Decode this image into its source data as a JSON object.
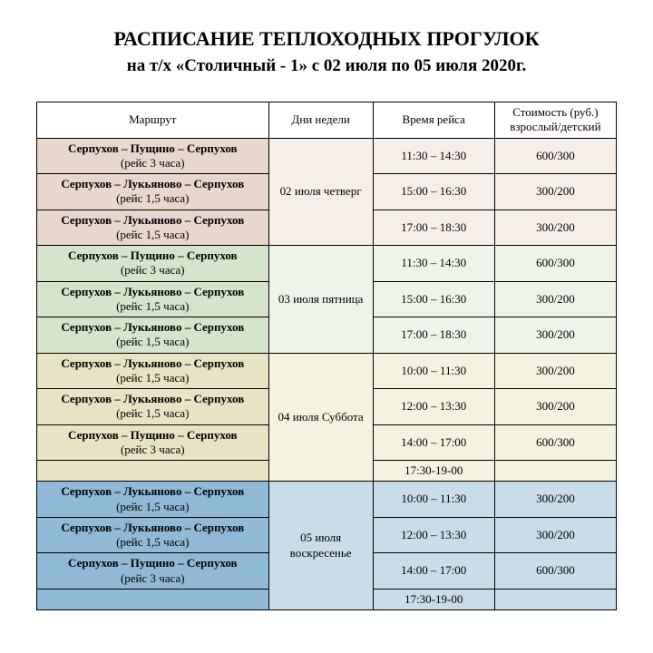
{
  "header": {
    "line1": "РАСПИСАНИЕ ТЕПЛОХОДНЫХ ПРОГУЛОК",
    "line2": "на т/х «Столичный - 1» с 02 июля по 05 июля 2020г."
  },
  "table": {
    "columns": {
      "route": "Маршрут",
      "day": "Дни недели",
      "time": "Время рейса",
      "price": "Стоимость (руб.) взрослый/детский"
    },
    "groups": [
      {
        "day": "02 июля четверг",
        "bg_route": "#e9d6cd",
        "bg_cells": "#f6efe9",
        "rows": [
          {
            "route_name": "Серпухов – Пущино – Серпухов",
            "route_dur": "(рейс 3 часа)",
            "time": "11:30 – 14:30",
            "price": "600/300"
          },
          {
            "route_name": "Серпухов – Лукьяново – Серпухов",
            "route_dur": "(рейс 1,5 часа)",
            "time": "15:00 – 16:30",
            "price": "300/200"
          },
          {
            "route_name": "Серпухов – Лукьяново – Серпухов",
            "route_dur": "(рейс 1,5 часа)",
            "time": "17:00 – 18:30",
            "price": "300/200"
          }
        ]
      },
      {
        "day": "03 июля пятница",
        "bg_route": "#d5e4cb",
        "bg_cells": "#eef4e9",
        "rows": [
          {
            "route_name": "Серпухов – Пущино – Серпухов",
            "route_dur": "(рейс 3 часа)",
            "time": "11:30 – 14:30",
            "price": "600/300"
          },
          {
            "route_name": "Серпухов – Лукьяново – Серпухов",
            "route_dur": "(рейс 1,5 часа)",
            "time": "15:00 – 16:30",
            "price": "300/200"
          },
          {
            "route_name": "Серпухов – Лукьяново – Серпухов",
            "route_dur": "(рейс 1,5 часа)",
            "time": "17:00 – 18:30",
            "price": "300/200"
          }
        ]
      },
      {
        "day": "04 июля Суббота",
        "bg_route": "#e8e3c3",
        "bg_cells": "#f5f2e0",
        "rows": [
          {
            "route_name": "Серпухов – Лукьяново – Серпухов",
            "route_dur": "(рейс 1,5 часа)",
            "time": "10:00 – 11:30",
            "price": "300/200"
          },
          {
            "route_name": "Серпухов – Лукьяново – Серпухов",
            "route_dur": "(рейс 1,5 часа)",
            "time": "12:00 – 13:30",
            "price": "300/200"
          },
          {
            "route_name": "Серпухов – Пущино – Серпухов",
            "route_dur": "(рейс 3 часа)",
            "time": "14:00 – 17:00",
            "price": "600/300"
          },
          {
            "route_name": "",
            "route_dur": "",
            "time": "17:30-19-00",
            "price": ""
          }
        ]
      },
      {
        "day": "05 июля воскресенье",
        "bg_route": "#8fb9d6",
        "bg_cells": "#c9dce9",
        "rows": [
          {
            "route_name": "Серпухов – Лукьяново – Серпухов",
            "route_dur": "(рейс 1,5 часа)",
            "time": "10:00 – 11:30",
            "price": "300/200"
          },
          {
            "route_name": "Серпухов – Лукьяново – Серпухов",
            "route_dur": "(рейс 1,5 часа)",
            "time": "12:00 – 13:30",
            "price": "300/200"
          },
          {
            "route_name": "Серпухов – Пущино – Серпухов",
            "route_dur": "(рейс 3 часа)",
            "time": "14:00 – 17:00",
            "price": "600/300"
          },
          {
            "route_name": "",
            "route_dur": "",
            "time": "17:30-19-00",
            "price": ""
          }
        ]
      }
    ]
  }
}
